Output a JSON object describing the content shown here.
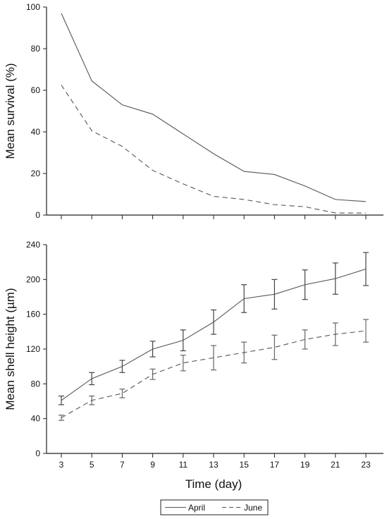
{
  "chart_data": [
    {
      "type": "line",
      "ylabel": "Mean survival (%)",
      "xlim": [
        3,
        23
      ],
      "ylim": [
        0,
        100
      ],
      "yticks": [
        "0",
        "20",
        "40",
        "60",
        "80",
        "100"
      ],
      "x": [
        3,
        5,
        7,
        9,
        11,
        13,
        15,
        17,
        19,
        21,
        23
      ],
      "series": [
        {
          "name": "April",
          "style": "solid",
          "color": "#555555",
          "values": [
            97,
            64.5,
            53,
            48.5,
            39,
            29.5,
            21,
            19.5,
            14,
            7.5,
            6.5
          ]
        },
        {
          "name": "June",
          "style": "dashed",
          "color": "#555555",
          "values": [
            62.5,
            40.5,
            33,
            21.5,
            15,
            9,
            7.5,
            5,
            4,
            1,
            1
          ]
        }
      ],
      "grid": false
    },
    {
      "type": "line",
      "ylabel": "Mean shell height (µm)",
      "xlabel": "Time (day)",
      "xlim": [
        3,
        23
      ],
      "ylim": [
        0,
        240
      ],
      "xticks": [
        "3",
        "5",
        "7",
        "9",
        "11",
        "13",
        "15",
        "17",
        "19",
        "21",
        "23"
      ],
      "yticks": [
        "0",
        "40",
        "80",
        "120",
        "160",
        "200",
        "240"
      ],
      "x": [
        3,
        5,
        7,
        9,
        11,
        13,
        15,
        17,
        19,
        21,
        23
      ],
      "series": [
        {
          "name": "April",
          "style": "solid",
          "color": "#555555",
          "values": [
            61,
            86,
            100,
            120,
            130,
            151,
            178,
            183,
            194,
            201,
            212
          ],
          "errors": [
            5,
            7,
            7,
            9,
            12,
            14,
            16,
            17,
            17,
            18,
            19
          ]
        },
        {
          "name": "June",
          "style": "dashed",
          "color": "#555555",
          "values": [
            41,
            61,
            69,
            91,
            104,
            110,
            116,
            122,
            131,
            137,
            141
          ],
          "errors": [
            3,
            5,
            5,
            6,
            9,
            14,
            12,
            14,
            11,
            13,
            13
          ]
        }
      ],
      "grid": false
    }
  ],
  "legend": {
    "position": "bottom-center",
    "items": [
      {
        "label": "April",
        "style": "solid"
      },
      {
        "label": "June",
        "style": "dashed"
      }
    ]
  }
}
